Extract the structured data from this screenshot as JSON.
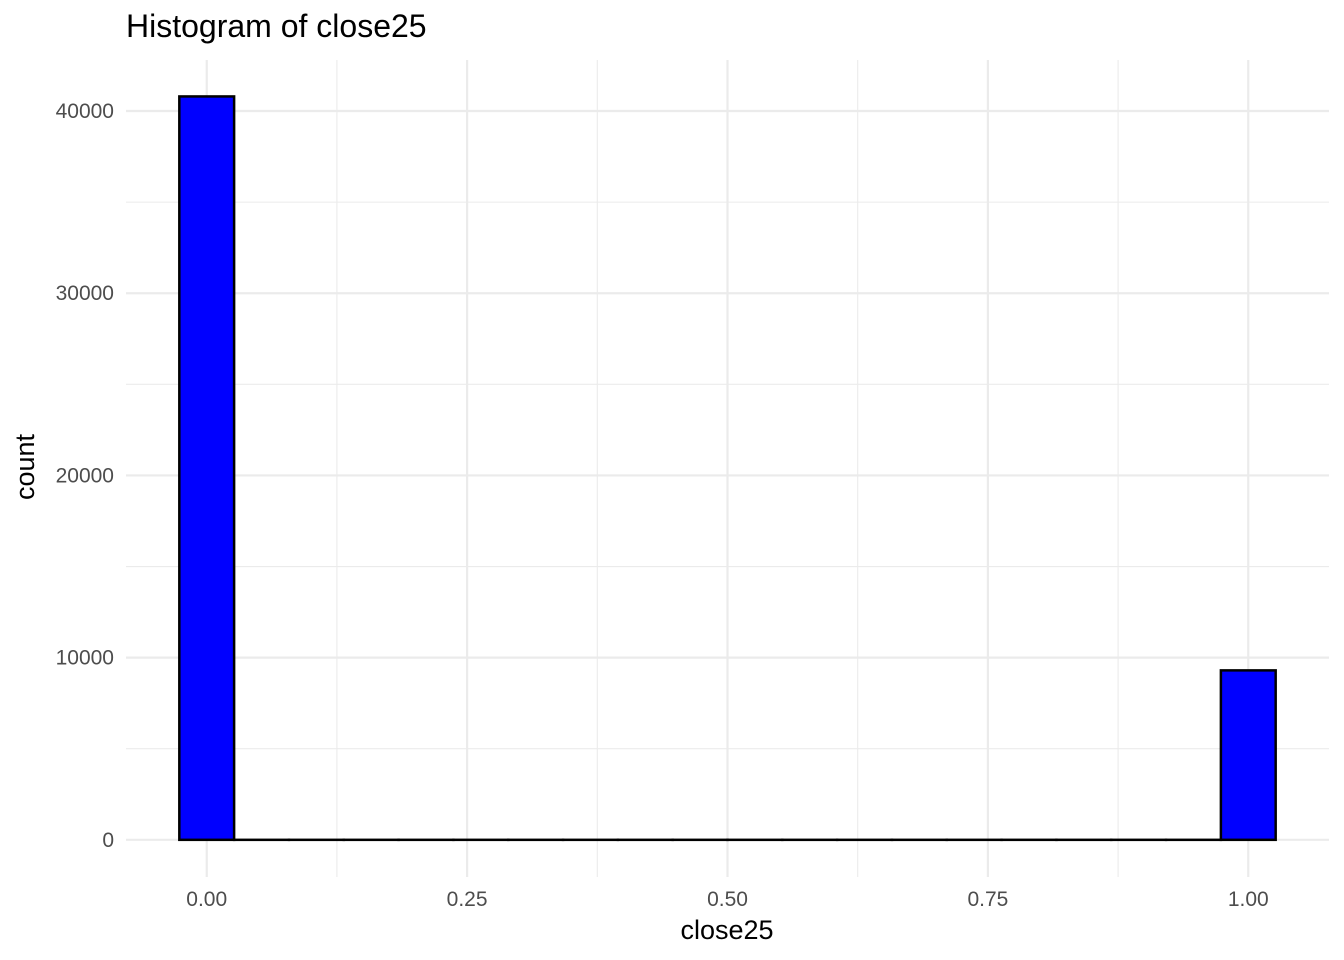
{
  "chart_data": {
    "type": "bar",
    "title": "Histogram of close25",
    "xlabel": "close25",
    "ylabel": "count",
    "x_ticks": [
      "0.00",
      "0.25",
      "0.50",
      "0.75",
      "1.00"
    ],
    "y_ticks": [
      "0",
      "10000",
      "20000",
      "30000",
      "40000"
    ],
    "xlim": [
      -0.0775,
      1.0775
    ],
    "ylim": [
      -2040,
      42800
    ],
    "bin_width": 0.0526,
    "bins": [
      {
        "center": 0.0,
        "count": 40800
      },
      {
        "center": 0.0526,
        "count": 0
      },
      {
        "center": 0.1053,
        "count": 0
      },
      {
        "center": 0.1579,
        "count": 0
      },
      {
        "center": 0.2105,
        "count": 0
      },
      {
        "center": 0.2632,
        "count": 0
      },
      {
        "center": 0.3158,
        "count": 0
      },
      {
        "center": 0.3684,
        "count": 0
      },
      {
        "center": 0.4211,
        "count": 0
      },
      {
        "center": 0.4737,
        "count": 0
      },
      {
        "center": 0.5263,
        "count": 0
      },
      {
        "center": 0.5789,
        "count": 0
      },
      {
        "center": 0.6316,
        "count": 0
      },
      {
        "center": 0.6842,
        "count": 0
      },
      {
        "center": 0.7368,
        "count": 0
      },
      {
        "center": 0.7895,
        "count": 0
      },
      {
        "center": 0.8421,
        "count": 0
      },
      {
        "center": 0.8947,
        "count": 0
      },
      {
        "center": 0.9474,
        "count": 0
      },
      {
        "center": 1.0,
        "count": 9300
      }
    ],
    "bar_fill": "#0000ff",
    "bar_outline": "#000000",
    "grid": true,
    "legend": "none"
  }
}
